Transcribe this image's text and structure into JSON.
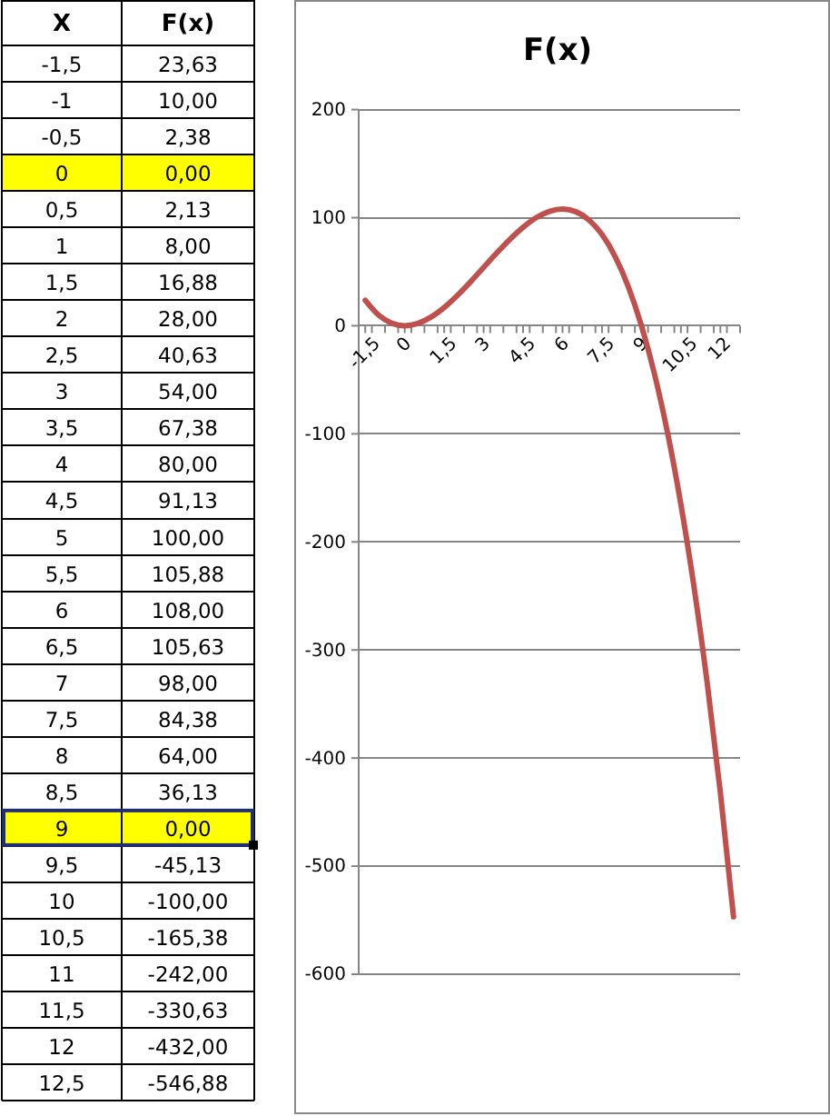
{
  "chart_data": {
    "type": "line",
    "title": "F(x)",
    "annotations": [
      "X",
      "F(x)",
      "-1,5",
      "23,63",
      "-1",
      "10,00",
      "-0,5",
      "2,38",
      "0",
      "0,00",
      "0,5",
      "2,13",
      "1",
      "8,00",
      "1,5",
      "16,88",
      "2",
      "28,00",
      "2,5",
      "40,63",
      "3",
      "54,00",
      "3,5",
      "67,38",
      "4",
      "80,00",
      "4,5",
      "91,13",
      "5",
      "100,00",
      "5,5",
      "105,88",
      "6",
      "108,00",
      "6,5",
      "105,63",
      "7",
      "98,00",
      "7,5",
      "84,38",
      "8",
      "64,00",
      "8,5",
      "36,13",
      "9",
      "0,00",
      "9,5",
      "-45,13",
      "10",
      "-100,00",
      "10,5",
      "-165,38",
      "11",
      "-242,00",
      "11,5",
      "-330,63",
      "12",
      "-432,00",
      "12,5",
      "-546,88"
    ],
    "x": [
      -1.5,
      -1,
      -0.5,
      0,
      0.5,
      1,
      1.5,
      2,
      2.5,
      3,
      3.5,
      4,
      4.5,
      5,
      5.5,
      6,
      6.5,
      7,
      7.5,
      8,
      8.5,
      9,
      9.5,
      10,
      10.5,
      11,
      11.5,
      12,
      12.5
    ],
    "values": [
      23.63,
      10,
      2.38,
      0,
      2.13,
      8,
      16.88,
      28,
      40.63,
      54,
      67.38,
      80,
      91.13,
      100,
      105.88,
      108,
      105.63,
      98,
      84.38,
      64,
      36.13,
      0,
      -45.13,
      -100,
      -165.38,
      -242,
      -330.63,
      -432,
      -546.88
    ],
    "color": "#c0504d",
    "xlim": [
      -1.75,
      12.75
    ],
    "xticks": [
      {
        "value": -1.75,
        "label": null
      },
      {
        "value": -1.5,
        "label": "-1,5"
      },
      {
        "value": -1.25,
        "label": null
      },
      {
        "value": -0.75,
        "label": null
      },
      {
        "value": -0.25,
        "label": null
      },
      0,
      {
        "value": 0.25,
        "label": null
      },
      {
        "value": 0.75,
        "label": null
      },
      {
        "value": 1.25,
        "label": null
      },
      {
        "value": 1.5,
        "label": "1,5"
      },
      {
        "value": 1.75,
        "label": null
      },
      {
        "value": 2.25,
        "label": null
      },
      {
        "value": 2.75,
        "label": null
      },
      3,
      {
        "value": 3.25,
        "label": null
      },
      {
        "value": 3.75,
        "label": null
      },
      {
        "value": 4.25,
        "label": null
      },
      {
        "value": 4.5,
        "label": "4,5"
      },
      {
        "value": 4.75,
        "label": null
      },
      {
        "value": 5.25,
        "label": null
      },
      {
        "value": 5.75,
        "label": null
      },
      6,
      {
        "value": 6.25,
        "label": null
      },
      {
        "value": 6.75,
        "label": null
      },
      {
        "value": 7.25,
        "label": null
      },
      {
        "value": 7.5,
        "label": "7,5"
      },
      {
        "value": 7.75,
        "label": null
      },
      {
        "value": 8.25,
        "label": null
      },
      {
        "value": 8.75,
        "label": null
      },
      9,
      {
        "value": 9.25,
        "label": null
      },
      {
        "value": 9.75,
        "label": null
      },
      {
        "value": 10.25,
        "label": null
      },
      {
        "value": 10.5,
        "label": "10,5"
      },
      {
        "value": 10.75,
        "label": null
      },
      {
        "value": 11.25,
        "label": null
      },
      {
        "value": 11.75,
        "label": null
      },
      12,
      {
        "value": 12.25,
        "label": null
      },
      {
        "value": 12.75,
        "label": null
      }
    ],
    "ylim": [
      -600,
      200
    ],
    "yticks": [
      200,
      100,
      0,
      -100,
      -200,
      -300,
      -400,
      -500,
      -600
    ],
    "grid": "y"
  }
}
